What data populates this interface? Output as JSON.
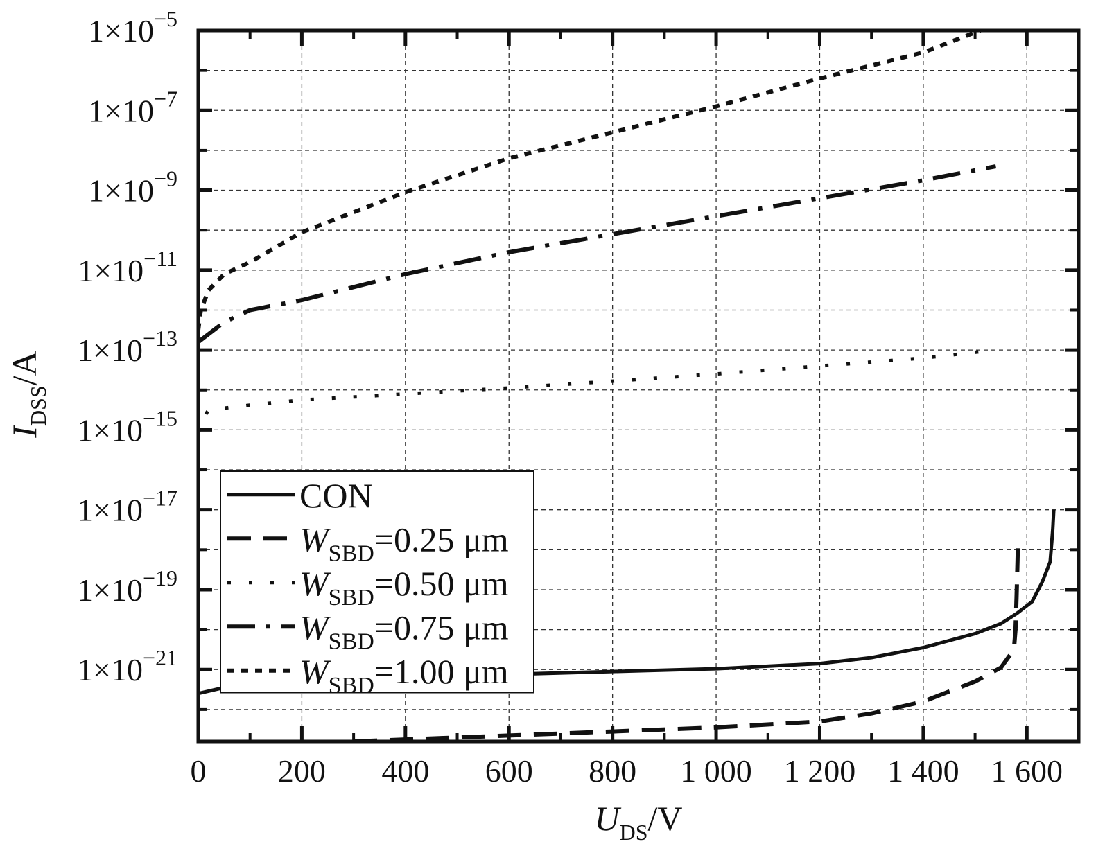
{
  "chart_data": {
    "type": "line",
    "xlabel": {
      "main": "U",
      "sub": "DS",
      "unit": "/V"
    },
    "ylabel": {
      "main": "I",
      "sub": "DSS",
      "unit": "/A"
    },
    "xlim": [
      0,
      1700
    ],
    "ylim_exp": [
      -22.8,
      -5
    ],
    "y_scale": "log",
    "grid": true,
    "x_ticks": [
      {
        "value": 0,
        "label": "0"
      },
      {
        "value": 200,
        "label": "200"
      },
      {
        "value": 400,
        "label": "400"
      },
      {
        "value": 600,
        "label": "600"
      },
      {
        "value": 800,
        "label": "800"
      },
      {
        "value": 1000,
        "label": "1 000"
      },
      {
        "value": 1200,
        "label": "1 200"
      },
      {
        "value": 1400,
        "label": "1 400"
      },
      {
        "value": 1600,
        "label": "1 600"
      }
    ],
    "y_ticks": [
      {
        "exp": -5,
        "base": "1×10",
        "sup": "−5"
      },
      {
        "exp": -7,
        "base": "1×10",
        "sup": "−7"
      },
      {
        "exp": -9,
        "base": "1×10",
        "sup": "−9"
      },
      {
        "exp": -11,
        "base": "1×10",
        "sup": "−11"
      },
      {
        "exp": -13,
        "base": "1×10",
        "sup": "−13"
      },
      {
        "exp": -15,
        "base": "1×10",
        "sup": "−15"
      },
      {
        "exp": -17,
        "base": "1×10",
        "sup": "−17"
      },
      {
        "exp": -19,
        "base": "1×10",
        "sup": "−19"
      },
      {
        "exp": -21,
        "base": "1×10",
        "sup": "−21"
      }
    ],
    "y_minor_exps": [
      -6,
      -8,
      -10,
      -12,
      -14,
      -16,
      -18,
      -20,
      -22
    ],
    "legend": {
      "placement": "bottom-left"
    },
    "series": [
      {
        "name": "CON",
        "name_parts": {
          "main": "CON",
          "sub": "",
          "rest": ""
        },
        "style": "solid",
        "color": "#111111",
        "points": [
          [
            0,
            -21.6
          ],
          [
            50,
            -21.45
          ],
          [
            100,
            -21.38
          ],
          [
            200,
            -21.3
          ],
          [
            300,
            -21.24
          ],
          [
            400,
            -21.2
          ],
          [
            600,
            -21.12
          ],
          [
            800,
            -21.05
          ],
          [
            1000,
            -20.98
          ],
          [
            1200,
            -20.85
          ],
          [
            1300,
            -20.7
          ],
          [
            1400,
            -20.45
          ],
          [
            1500,
            -20.1
          ],
          [
            1550,
            -19.85
          ],
          [
            1580,
            -19.6
          ],
          [
            1610,
            -19.3
          ],
          [
            1630,
            -18.8
          ],
          [
            1645,
            -18.3
          ],
          [
            1650,
            -17.5
          ],
          [
            1652,
            -17.0
          ]
        ]
      },
      {
        "name": "WSBD=0.25 μm",
        "name_parts": {
          "main": "W",
          "sub": "SBD",
          "rest": "=0.25 μm"
        },
        "style": "dashed",
        "color": "#111111",
        "points": [
          [
            300,
            -22.8
          ],
          [
            400,
            -22.75
          ],
          [
            600,
            -22.65
          ],
          [
            800,
            -22.55
          ],
          [
            1000,
            -22.45
          ],
          [
            1200,
            -22.3
          ],
          [
            1300,
            -22.1
          ],
          [
            1400,
            -21.8
          ],
          [
            1500,
            -21.3
          ],
          [
            1550,
            -20.95
          ],
          [
            1575,
            -20.5
          ],
          [
            1578,
            -20.0
          ],
          [
            1580,
            -19.2
          ],
          [
            1582,
            -18.3
          ],
          [
            1583,
            -17.7
          ]
        ]
      },
      {
        "name": "WSBD=0.50 μm",
        "name_parts": {
          "main": "W",
          "sub": "SBD",
          "rest": "=0.50 μm"
        },
        "style": "dotted",
        "color": "#111111",
        "points": [
          [
            0,
            -15.1
          ],
          [
            5,
            -14.8
          ],
          [
            20,
            -14.5
          ],
          [
            100,
            -14.38
          ],
          [
            200,
            -14.25
          ],
          [
            400,
            -14.1
          ],
          [
            600,
            -13.95
          ],
          [
            800,
            -13.78
          ],
          [
            1000,
            -13.6
          ],
          [
            1200,
            -13.4
          ],
          [
            1400,
            -13.2
          ],
          [
            1540,
            -13.0
          ]
        ]
      },
      {
        "name": "WSBD=0.75 μm",
        "name_parts": {
          "main": "W",
          "sub": "SBD",
          "rest": "=0.75 μm"
        },
        "style": "dashdot",
        "color": "#111111",
        "points": [
          [
            0,
            -12.8
          ],
          [
            20,
            -12.6
          ],
          [
            50,
            -12.3
          ],
          [
            100,
            -12.0
          ],
          [
            200,
            -11.75
          ],
          [
            400,
            -11.1
          ],
          [
            600,
            -10.55
          ],
          [
            800,
            -10.1
          ],
          [
            1000,
            -9.65
          ],
          [
            1200,
            -9.2
          ],
          [
            1400,
            -8.75
          ],
          [
            1540,
            -8.4
          ]
        ]
      },
      {
        "name": "WSBD=1.00 μm",
        "name_parts": {
          "main": "W",
          "sub": "SBD",
          "rest": "=1.00 μm"
        },
        "style": "dense-dotted",
        "color": "#111111",
        "points": [
          [
            0,
            -12.5
          ],
          [
            5,
            -12.0
          ],
          [
            20,
            -11.5
          ],
          [
            50,
            -11.1
          ],
          [
            100,
            -10.8
          ],
          [
            200,
            -10.05
          ],
          [
            400,
            -9.05
          ],
          [
            600,
            -8.2
          ],
          [
            800,
            -7.55
          ],
          [
            1000,
            -6.9
          ],
          [
            1200,
            -6.2
          ],
          [
            1400,
            -5.55
          ],
          [
            1510,
            -5.0
          ]
        ]
      }
    ]
  }
}
